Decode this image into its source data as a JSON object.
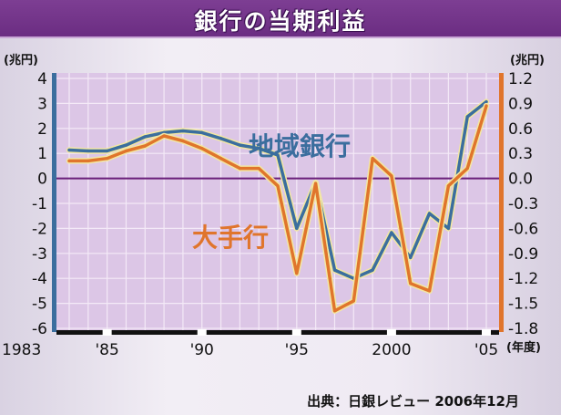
{
  "title": "銀行の当期利益",
  "source": "出典：日銀レビュー 2006年12月",
  "colors": {
    "regional": "#3b6e9e",
    "major": "#e0752c",
    "zero_line": "#6a1f7a",
    "plot_bg": "#dcc6e6",
    "grid": "#f4eaf7"
  },
  "chart_data": {
    "type": "line",
    "title": "銀行の当期利益",
    "left_axis": {
      "unit": "(兆円)",
      "ylim": [
        -6,
        4
      ],
      "ticks": [
        4,
        3,
        2,
        1,
        0,
        -1,
        -2,
        -3,
        -4,
        -5,
        -6
      ],
      "tick_labels": [
        "4",
        "3",
        "2",
        "1",
        "0",
        "-1",
        "-2",
        "-3",
        "-4",
        "-5",
        "-6"
      ]
    },
    "right_axis": {
      "unit": "(兆円)",
      "ylim": [
        -1.8,
        1.2
      ],
      "ticks": [
        1.2,
        0.9,
        0.6,
        0.3,
        0.0,
        -0.3,
        -0.6,
        -0.9,
        -1.2,
        -1.5,
        -1.8
      ],
      "tick_labels": [
        "1.2",
        "0.9",
        "0.6",
        "0.3",
        "0.0",
        "-0.3",
        "-0.6",
        "-0.9",
        "-1.2",
        "-1.5",
        "-1.8"
      ]
    },
    "x_axis": {
      "xlim": [
        1983,
        2005
      ],
      "tick_labels": [
        {
          "x": 1983,
          "label": "1983"
        },
        {
          "x": 1985,
          "label": "'85"
        },
        {
          "x": 1990,
          "label": "'90"
        },
        {
          "x": 1995,
          "label": "'95"
        },
        {
          "x": 2000,
          "label": "2000"
        },
        {
          "x": 2005,
          "label": "'05"
        }
      ],
      "unit": "(年度)"
    },
    "series": [
      {
        "name": "大手行",
        "axis": "left",
        "x": [
          1983,
          1984,
          1985,
          1986,
          1987,
          1988,
          1989,
          1990,
          1991,
          1992,
          1993,
          1994,
          1995,
          1996,
          1997,
          1998,
          1999,
          2000,
          2001,
          2002,
          2003,
          2004,
          2005
        ],
        "values": [
          0.7,
          0.7,
          0.8,
          1.1,
          1.3,
          1.7,
          1.5,
          1.2,
          0.8,
          0.4,
          0.4,
          -0.3,
          -3.8,
          -0.2,
          -5.3,
          -4.9,
          0.8,
          0.1,
          -4.2,
          -4.5,
          -0.3,
          0.4,
          2.9
        ]
      },
      {
        "name": "地域銀行",
        "axis": "right",
        "x": [
          1983,
          1984,
          1985,
          1986,
          1987,
          1988,
          1989,
          1990,
          1991,
          1992,
          1993,
          1994,
          1995,
          1996,
          1997,
          1998,
          1999,
          2000,
          2001,
          2002,
          2003,
          2004,
          2005
        ],
        "values": [
          0.34,
          0.33,
          0.33,
          0.4,
          0.5,
          0.55,
          0.57,
          0.55,
          0.48,
          0.4,
          0.36,
          0.28,
          -0.6,
          -0.05,
          -1.1,
          -1.2,
          -1.1,
          -0.65,
          -0.95,
          -0.42,
          -0.6,
          0.74,
          0.92
        ]
      }
    ]
  }
}
